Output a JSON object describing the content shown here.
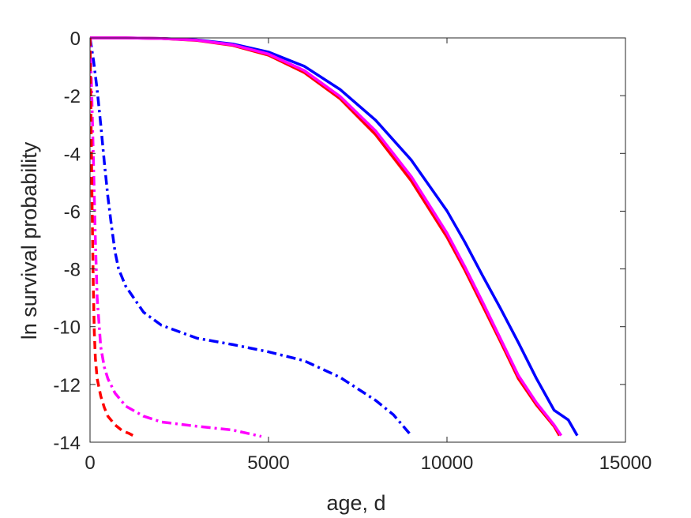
{
  "chart_data": {
    "type": "line",
    "title": "",
    "xlabel": "age, d",
    "ylabel": "ln survival probability",
    "xlim": [
      0,
      15000
    ],
    "ylim": [
      -14,
      0
    ],
    "xticks": [
      0,
      5000,
      10000,
      15000
    ],
    "xtick_labels": [
      "0",
      "5000",
      "10000",
      "15000"
    ],
    "yticks": [
      0,
      -2,
      -4,
      -6,
      -8,
      -10,
      -12,
      -14
    ],
    "ytick_labels": [
      "0",
      "-2",
      "-4",
      "-6",
      "-8",
      "-10",
      "-12",
      "-14"
    ],
    "grid": false,
    "legend": "none",
    "series": [
      {
        "color": "#0000ff",
        "style": "solid",
        "x": [
          0,
          1000,
          2000,
          3000,
          4000,
          5000,
          6000,
          7000,
          8000,
          9000,
          10000,
          10500,
          11000,
          11500,
          12000,
          12500,
          13000,
          13400,
          13650
        ],
        "y": [
          0,
          0,
          -0.02,
          -0.07,
          -0.21,
          -0.49,
          -0.98,
          -1.78,
          -2.85,
          -4.23,
          -5.99,
          -7.07,
          -8.24,
          -9.37,
          -10.55,
          -11.78,
          -12.89,
          -13.23,
          -13.77
        ]
      },
      {
        "color": "#ff0000",
        "style": "solid",
        "x": [
          0,
          1000,
          2000,
          3000,
          4000,
          5000,
          6000,
          7000,
          8000,
          9000,
          10000,
          10500,
          11000,
          11500,
          12000,
          12500,
          13000,
          13150
        ],
        "y": [
          0,
          0,
          -0.02,
          -0.09,
          -0.26,
          -0.6,
          -1.2,
          -2.1,
          -3.35,
          -4.95,
          -6.9,
          -8.04,
          -9.28,
          -10.52,
          -11.8,
          -12.7,
          -13.45,
          -13.77
        ]
      },
      {
        "color": "#ff00ff",
        "style": "solid",
        "x": [
          0,
          1000,
          2000,
          3000,
          4000,
          5000,
          6000,
          7000,
          8000,
          9000,
          10000,
          10500,
          11000,
          11500,
          12000,
          12500,
          13000,
          13200
        ],
        "y": [
          0,
          0,
          -0.02,
          -0.08,
          -0.24,
          -0.56,
          -1.13,
          -2.02,
          -3.22,
          -4.8,
          -6.76,
          -7.92,
          -9.15,
          -10.42,
          -11.69,
          -12.62,
          -13.4,
          -13.77
        ]
      },
      {
        "color": "#0000ff",
        "style": "dashdot",
        "x": [
          0,
          100,
          200,
          300,
          400,
          500,
          600,
          700,
          800,
          1000,
          1500,
          2000,
          3000,
          4000,
          5000,
          6000,
          7000,
          8000,
          8500,
          9000
        ],
        "y": [
          0,
          -0.8,
          -1.8,
          -3.0,
          -4.3,
          -5.5,
          -6.5,
          -7.4,
          -8.0,
          -8.6,
          -9.5,
          -9.95,
          -10.4,
          -10.62,
          -10.87,
          -11.18,
          -11.75,
          -12.55,
          -13.05,
          -13.77
        ]
      },
      {
        "color": "#ff00ff",
        "style": "dashdot",
        "x": [
          0,
          50,
          100,
          150,
          200,
          300,
          400,
          500,
          700,
          1000,
          1500,
          2000,
          3000,
          4000,
          4800
        ],
        "y": [
          0,
          -2,
          -4.5,
          -7,
          -9,
          -10.7,
          -11.4,
          -11.8,
          -12.3,
          -12.75,
          -13.1,
          -13.3,
          -13.45,
          -13.58,
          -13.8
        ]
      },
      {
        "color": "#ff0000",
        "style": "dashed",
        "x": [
          0,
          30,
          60,
          90,
          120,
          150,
          200,
          300,
          400,
          500,
          700,
          900,
          1100,
          1250
        ],
        "y": [
          0,
          -3,
          -6,
          -8.5,
          -10.2,
          -11.1,
          -11.8,
          -12.4,
          -12.8,
          -13.1,
          -13.4,
          -13.6,
          -13.7,
          -13.8
        ]
      }
    ]
  }
}
